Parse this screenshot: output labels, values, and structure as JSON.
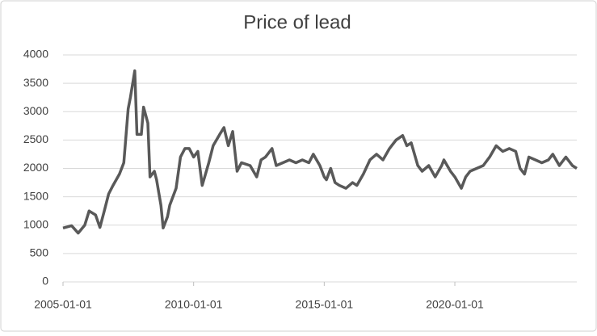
{
  "chart_data": {
    "type": "line",
    "title": "Price of lead",
    "x": [
      "2005-01-01",
      "2005-05-01",
      "2005-08-01",
      "2005-11-01",
      "2006-01-01",
      "2006-04-01",
      "2006-06-01",
      "2006-08-01",
      "2006-10-01",
      "2006-12-01",
      "2007-03-01",
      "2007-05-01",
      "2007-07-01",
      "2007-08-01",
      "2007-10-01",
      "2007-11-01",
      "2008-01-01",
      "2008-02-01",
      "2008-04-01",
      "2008-05-01",
      "2008-07-01",
      "2008-08-01",
      "2008-10-01",
      "2008-11-01",
      "2009-01-01",
      "2009-02-01",
      "2009-05-01",
      "2009-07-01",
      "2009-09-01",
      "2009-11-01",
      "2010-01-01",
      "2010-03-01",
      "2010-05-01",
      "2010-08-01",
      "2010-10-01",
      "2011-01-01",
      "2011-03-01",
      "2011-05-01",
      "2011-07-01",
      "2011-09-01",
      "2011-11-01",
      "2012-03-01",
      "2012-06-01",
      "2012-08-01",
      "2012-10-01",
      "2013-01-01",
      "2013-03-01",
      "2013-06-01",
      "2013-09-01",
      "2013-12-01",
      "2014-03-01",
      "2014-06-01",
      "2014-08-01",
      "2014-11-01",
      "2015-01-01",
      "2015-02-01",
      "2015-04-01",
      "2015-06-01",
      "2015-08-01",
      "2015-11-01",
      "2016-02-01",
      "2016-04-01",
      "2016-07-01",
      "2016-10-01",
      "2017-01-01",
      "2017-04-01",
      "2017-07-01",
      "2017-10-01",
      "2018-01-01",
      "2018-03-01",
      "2018-05-01",
      "2018-08-01",
      "2018-10-01",
      "2019-01-01",
      "2019-04-01",
      "2019-07-01",
      "2019-08-01",
      "2019-11-01",
      "2020-01-01",
      "2020-04-01",
      "2020-06-01",
      "2020-08-01",
      "2020-11-01",
      "2021-02-01",
      "2021-05-01",
      "2021-08-01",
      "2021-11-01",
      "2022-02-01",
      "2022-05-01",
      "2022-07-01",
      "2022-09-01",
      "2022-11-01",
      "2023-02-01",
      "2023-05-01",
      "2023-08-01",
      "2023-10-01",
      "2024-01-01",
      "2024-04-01",
      "2024-07-01",
      "2024-09-01"
    ],
    "series": [
      {
        "name": "Price of lead",
        "color": "#595959",
        "values": [
          950,
          990,
          860,
          1000,
          1250,
          1180,
          960,
          1250,
          1550,
          1700,
          1900,
          2100,
          3050,
          3250,
          3720,
          2600,
          2600,
          3080,
          2800,
          1850,
          1950,
          1800,
          1350,
          950,
          1150,
          1350,
          1650,
          2200,
          2350,
          2350,
          2200,
          2300,
          1700,
          2100,
          2400,
          2600,
          2720,
          2400,
          2650,
          1950,
          2100,
          2050,
          1850,
          2150,
          2200,
          2350,
          2050,
          2100,
          2150,
          2100,
          2150,
          2100,
          2250,
          2050,
          1850,
          1800,
          2000,
          1750,
          1700,
          1650,
          1750,
          1700,
          1900,
          2150,
          2250,
          2150,
          2350,
          2500,
          2580,
          2400,
          2450,
          2050,
          1950,
          2050,
          1850,
          2050,
          2150,
          1950,
          1850,
          1650,
          1850,
          1950,
          2000,
          2050,
          2200,
          2400,
          2300,
          2350,
          2300,
          2000,
          1900,
          2200,
          2150,
          2100,
          2150,
          2250,
          2050,
          2200,
          2050,
          2000
        ]
      }
    ],
    "xlim": [
      "2005-01-01",
      "2024-09-01"
    ],
    "xticks": [
      "2005-01-01",
      "2010-01-01",
      "2015-01-01",
      "2020-01-01"
    ],
    "ylim": [
      0,
      4000
    ],
    "yticks": [
      0,
      500,
      1000,
      1500,
      2000,
      2500,
      3000,
      3500,
      4000
    ],
    "grid": true
  }
}
